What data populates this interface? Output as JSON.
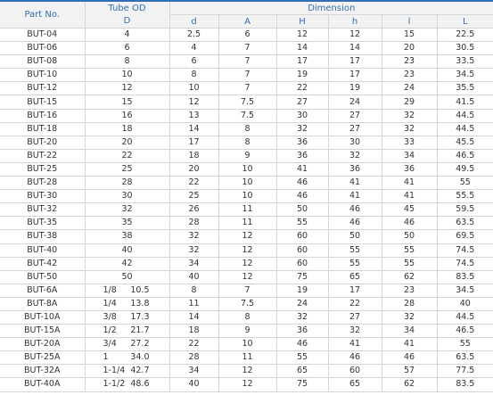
{
  "header": {
    "part": "Part No.",
    "tube_od": "Tube OD",
    "tube_od_sym": "D",
    "dimension": "Dimension",
    "dims": [
      "d",
      "A",
      "H",
      "h",
      "l",
      "L"
    ]
  },
  "table": {
    "rows": [
      {
        "part": "BUT-04",
        "D": "4",
        "dims": [
          "2.5",
          "6",
          "12",
          "12",
          "15",
          "22.5"
        ]
      },
      {
        "part": "BUT-06",
        "D": "6",
        "dims": [
          "4",
          "7",
          "14",
          "14",
          "20",
          "30.5"
        ]
      },
      {
        "part": "BUT-08",
        "D": "8",
        "dims": [
          "6",
          "7",
          "17",
          "17",
          "23",
          "33.5"
        ]
      },
      {
        "part": "BUT-10",
        "D": "10",
        "dims": [
          "8",
          "7",
          "19",
          "17",
          "23",
          "34.5"
        ]
      },
      {
        "part": "BUT-12",
        "D": "12",
        "dims": [
          "10",
          "7",
          "22",
          "19",
          "24",
          "35.5"
        ]
      },
      {
        "part": "BUT-15",
        "D": "15",
        "dims": [
          "12",
          "7.5",
          "27",
          "24",
          "29",
          "41.5"
        ]
      },
      {
        "part": "BUT-16",
        "D": "16",
        "dims": [
          "13",
          "7.5",
          "30",
          "27",
          "32",
          "44.5"
        ]
      },
      {
        "part": "BUT-18",
        "D": "18",
        "dims": [
          "14",
          "8",
          "32",
          "27",
          "32",
          "44.5"
        ]
      },
      {
        "part": "BUT-20",
        "D": "20",
        "dims": [
          "17",
          "8",
          "36",
          "30",
          "33",
          "45.5"
        ]
      },
      {
        "part": "BUT-22",
        "D": "22",
        "dims": [
          "18",
          "9",
          "36",
          "32",
          "34",
          "46.5"
        ]
      },
      {
        "part": "BUT-25",
        "D": "25",
        "dims": [
          "20",
          "10",
          "41",
          "36",
          "36",
          "49.5"
        ]
      },
      {
        "part": "BUT-28",
        "D": "28",
        "dims": [
          "22",
          "10",
          "46",
          "41",
          "41",
          "55"
        ]
      },
      {
        "part": "BUT-30",
        "D": "30",
        "dims": [
          "25",
          "10",
          "46",
          "41",
          "41",
          "55.5"
        ]
      },
      {
        "part": "BUT-32",
        "D": "32",
        "dims": [
          "26",
          "11",
          "50",
          "46",
          "45",
          "59.5"
        ]
      },
      {
        "part": "BUT-35",
        "D": "35",
        "dims": [
          "28",
          "11",
          "55",
          "46",
          "46",
          "63.5"
        ]
      },
      {
        "part": "BUT-38",
        "D": "38",
        "dims": [
          "32",
          "12",
          "60",
          "50",
          "50",
          "69.5"
        ]
      },
      {
        "part": "BUT-40",
        "D": "40",
        "dims": [
          "32",
          "12",
          "60",
          "55",
          "55",
          "74.5"
        ]
      },
      {
        "part": "BUT-42",
        "D": "42",
        "dims": [
          "34",
          "12",
          "60",
          "55",
          "55",
          "74.5"
        ]
      },
      {
        "part": "BUT-50",
        "D": "50",
        "dims": [
          "40",
          "12",
          "75",
          "65",
          "62",
          "83.5"
        ]
      },
      {
        "part": "BUT-6A",
        "D": [
          "1/8",
          "10.5"
        ],
        "dims": [
          "8",
          "7",
          "19",
          "17",
          "23",
          "34.5"
        ]
      },
      {
        "part": "BUT-8A",
        "D": [
          "1/4",
          "13.8"
        ],
        "dims": [
          "11",
          "7.5",
          "24",
          "22",
          "28",
          "40"
        ]
      },
      {
        "part": "BUT-10A",
        "D": [
          "3/8",
          "17.3"
        ],
        "dims": [
          "14",
          "8",
          "32",
          "27",
          "32",
          "44.5"
        ]
      },
      {
        "part": "BUT-15A",
        "D": [
          "1/2",
          "21.7"
        ],
        "dims": [
          "18",
          "9",
          "36",
          "32",
          "34",
          "46.5"
        ]
      },
      {
        "part": "BUT-20A",
        "D": [
          "3/4",
          "27.2"
        ],
        "dims": [
          "22",
          "10",
          "46",
          "41",
          "41",
          "55"
        ]
      },
      {
        "part": "BUT-25A",
        "D": [
          "1",
          "34.0"
        ],
        "dims": [
          "28",
          "11",
          "55",
          "46",
          "46",
          "63.5"
        ]
      },
      {
        "part": "BUT-32A",
        "D": [
          "1-1/4",
          "42.7"
        ],
        "dims": [
          "34",
          "12",
          "65",
          "60",
          "57",
          "77.5"
        ]
      },
      {
        "part": "BUT-40A",
        "D": [
          "1-1/2",
          "48.6"
        ],
        "dims": [
          "40",
          "12",
          "75",
          "65",
          "62",
          "83.5"
        ]
      }
    ]
  }
}
